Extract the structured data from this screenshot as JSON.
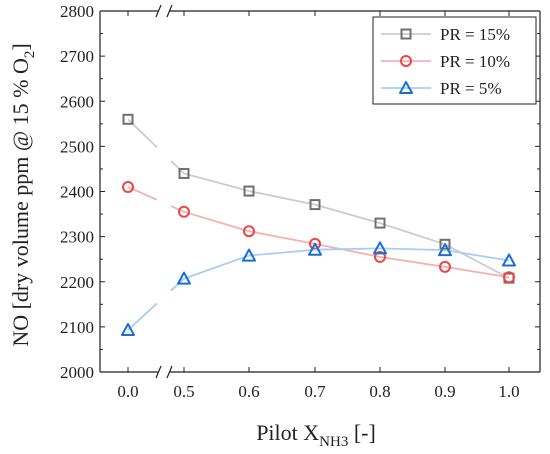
{
  "chart_data": {
    "type": "line",
    "xlabel": {
      "main": "Pilot X",
      "sub": "NH3",
      "tail": " [-]"
    },
    "ylabel": {
      "main": "NO [dry volume ppm @ 15 % O",
      "sub": "2",
      "tail": "]"
    },
    "x_categories": [
      "0.0",
      "0.5",
      "0.6",
      "0.7",
      "0.8",
      "0.9",
      "1.0"
    ],
    "y_ticks": [
      "2000",
      "2100",
      "2200",
      "2300",
      "2400",
      "2500",
      "2600",
      "2700",
      "2800"
    ],
    "ylim": [
      2000,
      2800
    ],
    "axis_break": {
      "after_category_index": 0,
      "symbol": "//"
    },
    "grid": false,
    "legend_position": "top-right",
    "series": [
      {
        "name": "PR = 15%",
        "marker": "square",
        "color": "#707070",
        "line_color": "#cccccc",
        "values": [
          2560,
          2440,
          2401,
          2371,
          2330,
          2283,
          2208
        ]
      },
      {
        "name": "PR = 10%",
        "marker": "circle",
        "color": "#ee4444",
        "line_color": "#f5b0b0",
        "values": [
          2410,
          2355,
          2312,
          2284,
          2255,
          2233,
          2210
        ]
      },
      {
        "name": "PR = 5%",
        "marker": "triangle",
        "color": "#1a6fd6",
        "line_color": "#a6cef2",
        "values": [
          2093,
          2207,
          2258,
          2271,
          2274,
          2270,
          2247
        ]
      }
    ]
  }
}
